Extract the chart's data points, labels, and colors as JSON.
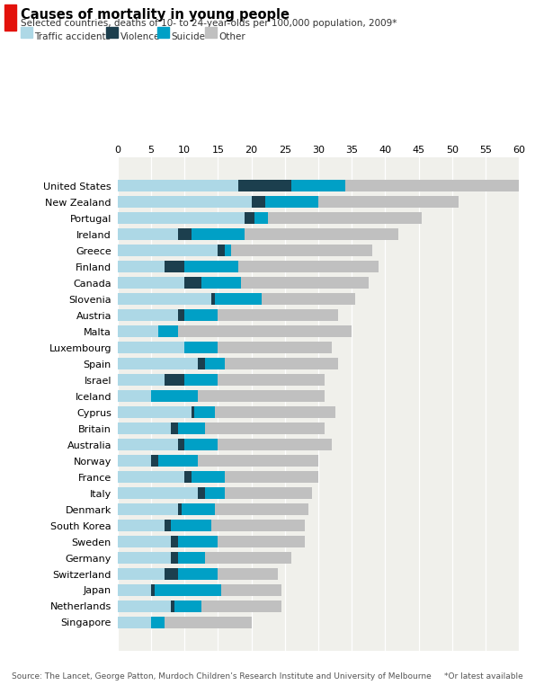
{
  "title": "Causes of mortality in young people",
  "subtitle": "Selected countries, deaths of 10- to 24-year-olds per 100,000 population, 2009*",
  "source": "Source: The Lancet, George Patton, Murdoch Children’s Research Institute and University of Melbourne",
  "note": "*Or latest available",
  "legend": [
    "Traffic accidents",
    "Violence",
    "Suicide",
    "Other"
  ],
  "colors": {
    "traffic": "#add8e6",
    "violence": "#1c3f4e",
    "suicide": "#00a0c6",
    "other": "#c0c0c0"
  },
  "xlim": [
    0,
    60
  ],
  "xticks": [
    0,
    5,
    10,
    15,
    20,
    25,
    30,
    35,
    40,
    45,
    50,
    55,
    60
  ],
  "countries": [
    "United States",
    "New Zealand",
    "Portugal",
    "Ireland",
    "Greece",
    "Finland",
    "Canada",
    "Slovenia",
    "Austria",
    "Malta",
    "Luxembourg",
    "Spain",
    "Israel",
    "Iceland",
    "Cyprus",
    "Britain",
    "Australia",
    "Norway",
    "France",
    "Italy",
    "Denmark",
    "South Korea",
    "Sweden",
    "Germany",
    "Switzerland",
    "Japan",
    "Netherlands",
    "Singapore"
  ],
  "traffic": [
    18.0,
    20.0,
    19.0,
    9.0,
    15.0,
    7.0,
    10.0,
    14.0,
    9.0,
    6.0,
    10.0,
    12.0,
    7.0,
    5.0,
    11.0,
    8.0,
    9.0,
    5.0,
    10.0,
    12.0,
    9.0,
    7.0,
    8.0,
    8.0,
    7.0,
    5.0,
    8.0,
    5.0
  ],
  "violence": [
    8.0,
    2.0,
    1.5,
    2.0,
    1.0,
    3.0,
    2.5,
    0.5,
    1.0,
    0.0,
    0.0,
    1.0,
    3.0,
    0.0,
    0.5,
    1.0,
    1.0,
    1.0,
    1.0,
    1.0,
    0.5,
    1.0,
    1.0,
    1.0,
    2.0,
    0.5,
    0.5,
    0.0
  ],
  "suicide": [
    8.0,
    8.0,
    2.0,
    8.0,
    1.0,
    8.0,
    6.0,
    7.0,
    5.0,
    3.0,
    5.0,
    3.0,
    5.0,
    7.0,
    3.0,
    4.0,
    5.0,
    6.0,
    5.0,
    3.0,
    5.0,
    6.0,
    6.0,
    4.0,
    6.0,
    10.0,
    4.0,
    2.0
  ],
  "other": [
    26.0,
    21.0,
    23.0,
    23.0,
    21.0,
    21.0,
    19.0,
    14.0,
    18.0,
    26.0,
    17.0,
    17.0,
    16.0,
    19.0,
    18.0,
    18.0,
    17.0,
    18.0,
    14.0,
    13.0,
    14.0,
    14.0,
    13.0,
    13.0,
    9.0,
    9.0,
    12.0,
    13.0
  ]
}
